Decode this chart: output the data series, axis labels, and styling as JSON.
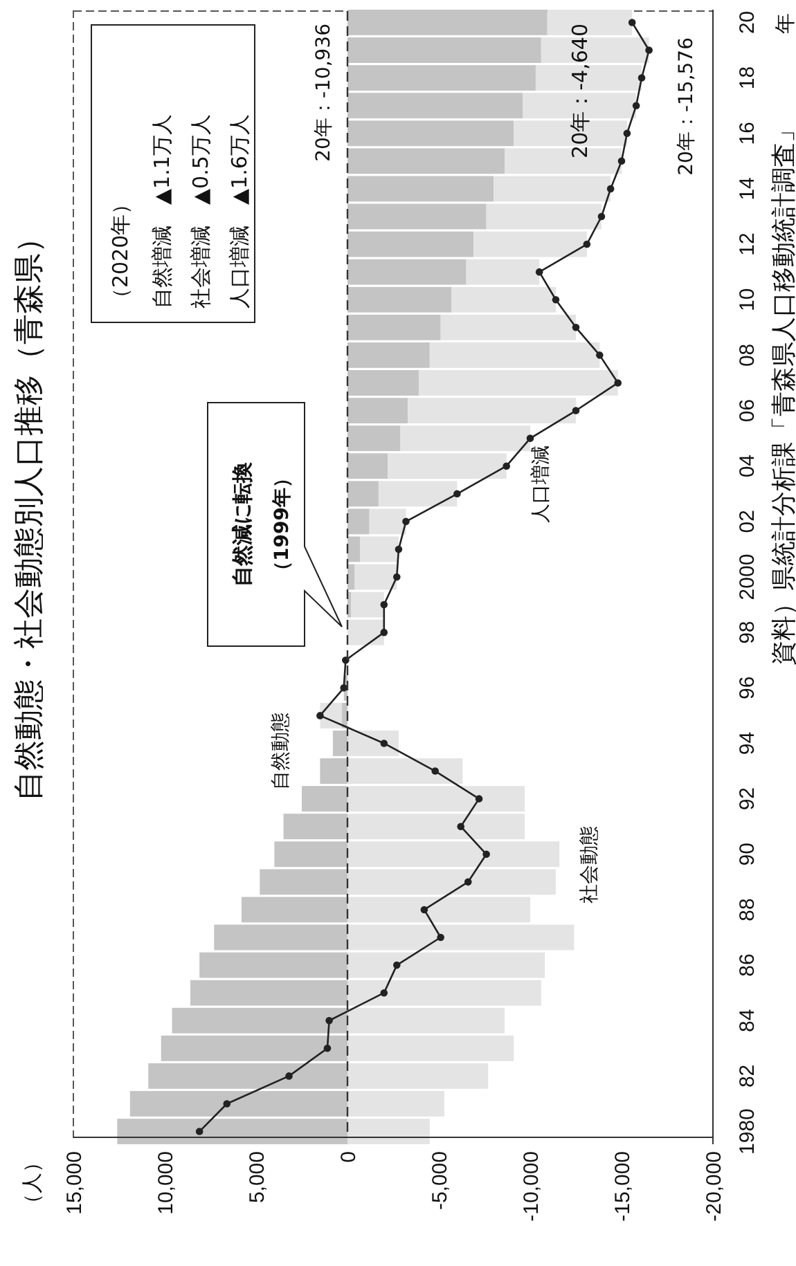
{
  "chart_data": {
    "type": "bar",
    "orientation": "horizontal",
    "title": "自然動態・社会動態別人口推移（青森県）",
    "ylabel": "年",
    "categories": [
      "20",
      null,
      "18",
      null,
      "16",
      null,
      "14",
      null,
      "12",
      null,
      "10",
      null,
      "08",
      null,
      "06",
      null,
      "04",
      null,
      "02",
      null,
      "2000",
      null,
      "98",
      null,
      "96",
      null,
      "94",
      null,
      "92",
      null,
      "90",
      null,
      "88",
      null,
      "86",
      null,
      "84",
      null,
      "82",
      null,
      "1980"
    ],
    "stacked": true,
    "series": [
      {
        "name": "自然動態",
        "color": "#c4c4c4",
        "values": [
          -10936,
          -10600,
          -10300,
          -9600,
          -9100,
          -8600,
          -8000,
          -7600,
          -6900,
          -6500,
          -5700,
          -5100,
          -4500,
          -3900,
          -3300,
          -2900,
          -2200,
          -1700,
          -1200,
          -700,
          -400,
          -200,
          null,
          null,
          200,
          300,
          800,
          1500,
          2500,
          3500,
          4000,
          4800,
          5800,
          7300,
          8100,
          8600,
          9600,
          10200,
          10900,
          11900,
          12600
        ]
      },
      {
        "name": "社会動態",
        "color": "#e4e4e4",
        "values": [
          -4640,
          -5900,
          -5800,
          -6200,
          -6200,
          -6400,
          -6400,
          -6300,
          -6200,
          -4000,
          -5700,
          -7400,
          -9300,
          -10900,
          -9200,
          -7100,
          -6500,
          -4300,
          -2000,
          -2100,
          -2300,
          -1800,
          -2000,
          0,
          0,
          1200,
          -2800,
          -6300,
          -9700,
          -9700,
          -11600,
          -11400,
          -10000,
          -12400,
          -10800,
          -10600,
          -8600,
          -9100,
          -7700,
          -5300,
          -4500
        ]
      },
      {
        "name": "人口増減",
        "type": "line",
        "color": "#222222",
        "values": [
          -15576,
          -16500,
          -16100,
          -15800,
          -15300,
          -15000,
          -14400,
          -13900,
          -13100,
          -10500,
          -11400,
          -12500,
          -13800,
          -14800,
          -12500,
          -10000,
          -8700,
          -6000,
          -3200,
          -2800,
          -2700,
          -2000,
          -2000,
          100,
          200,
          1500,
          -2000,
          -4800,
          -7200,
          -6200,
          -7600,
          -6600,
          -4200,
          -5100,
          -2700,
          -2000,
          1000,
          1100,
          3200,
          6600,
          8100
        ]
      }
    ],
    "marker": "circle",
    "line_style": "solid",
    "xlim": [
      15000,
      -20000
    ],
    "xticks": [
      {
        "value": 15000,
        "label": "15,000"
      },
      {
        "value": 10000,
        "label": "10,000"
      },
      {
        "value": 5000,
        "label": "5,000"
      },
      0,
      {
        "value": -5000,
        "label": "-5,000"
      },
      {
        "value": -10000,
        "label": "-10,000"
      },
      {
        "value": -15000,
        "label": "-15,000"
      },
      {
        "value": -20000,
        "label": "-20,000"
      }
    ],
    "ref_lines": [
      {
        "axis": "x",
        "value": 0,
        "line_style": "dashed",
        "color": "#333333"
      }
    ],
    "annotations": [
      "（人）",
      "（2020年）",
      "自然増減　▲1.1万人",
      "社会増減　▲0.5万人",
      "人口増減　▲1.6万人",
      "20年：-10,936",
      "20年：-4,640",
      "20年：-15,576",
      "自然減に転換",
      "（1999年）",
      "資料）県統計分析課「青森県人口移動統計調査」"
    ]
  }
}
